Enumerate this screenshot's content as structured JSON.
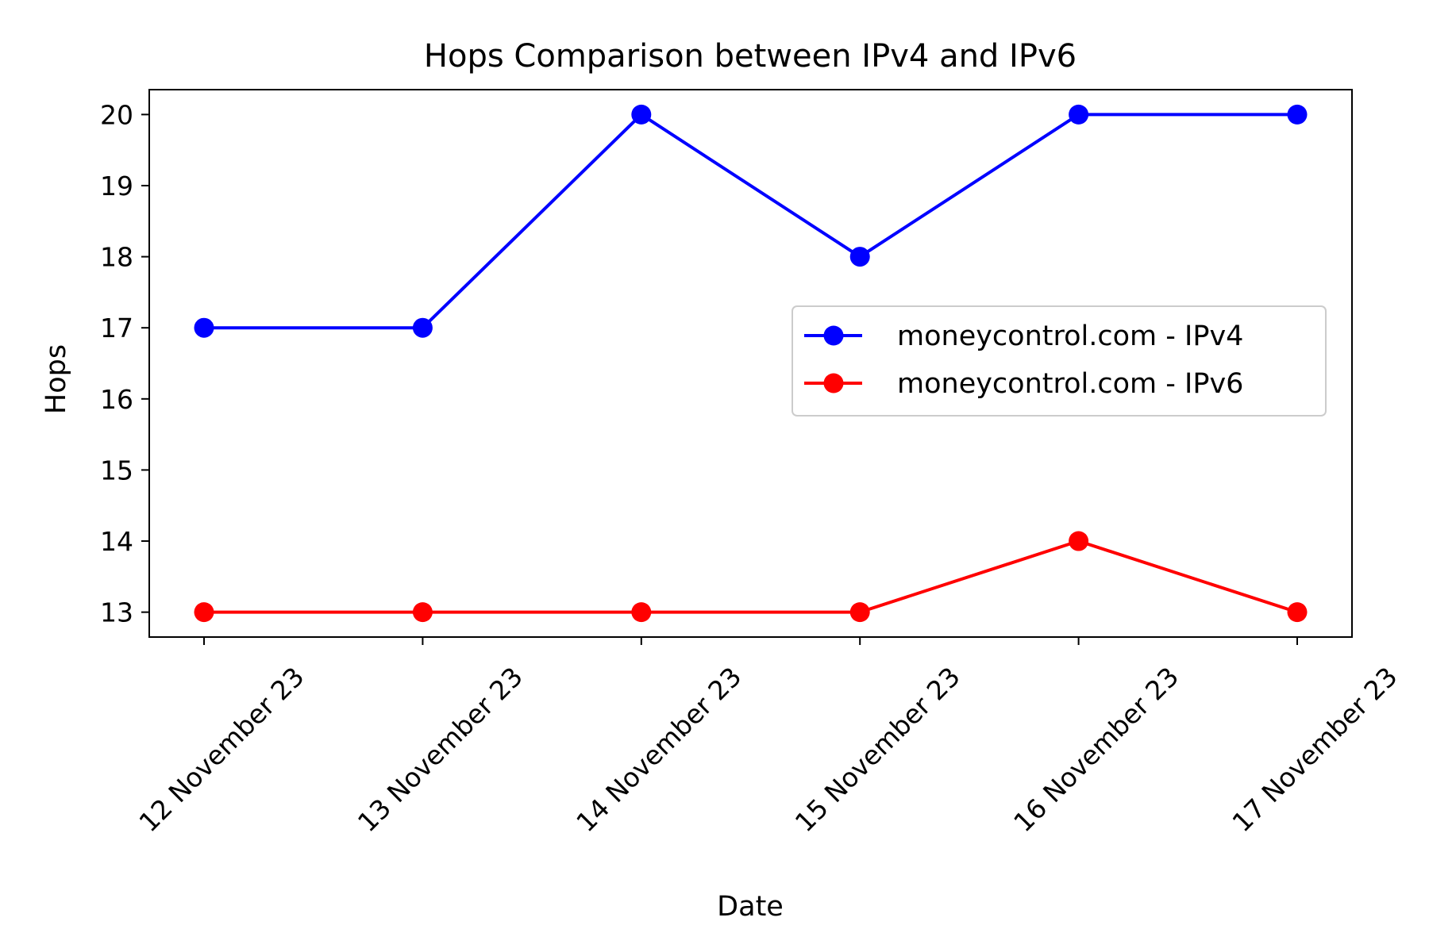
{
  "chart_data": {
    "type": "line",
    "title": "Hops Comparison between IPv4 and IPv6",
    "xlabel": "Date",
    "ylabel": "Hops",
    "categories": [
      "12 November 23",
      "13 November 23",
      "14 November 23",
      "15 November 23",
      "16 November 23",
      "17 November 23"
    ],
    "series": [
      {
        "name": "moneycontrol.com - IPv4",
        "color": "#0000ff",
        "marker": "circle",
        "values": [
          17,
          17,
          20,
          18,
          20,
          20
        ]
      },
      {
        "name": "moneycontrol.com - IPv6",
        "color": "#ff0000",
        "marker": "circle",
        "values": [
          13,
          13,
          13,
          13,
          14,
          13
        ]
      }
    ],
    "yticks": [
      13,
      14,
      15,
      16,
      17,
      18,
      19,
      20
    ],
    "ylim": [
      12.65,
      20.35
    ],
    "grid": false,
    "legend_position": "center-right"
  }
}
